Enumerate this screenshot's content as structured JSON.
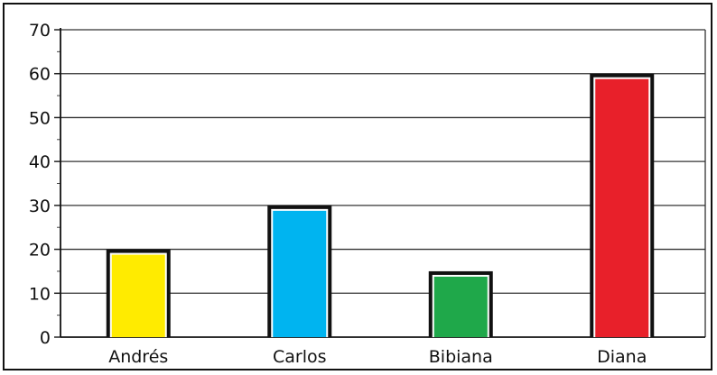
{
  "chart_data": {
    "type": "bar",
    "title": "",
    "xlabel": "",
    "ylabel": "",
    "categories": [
      "Andrés",
      "Carlos",
      "Bibiana",
      "Diana"
    ],
    "values": [
      20,
      30,
      15,
      60
    ],
    "colors": [
      "#ffeb00",
      "#00b4f0",
      "#1fa84a",
      "#e8202a"
    ],
    "ylim": [
      0,
      70
    ],
    "yticks": [
      0,
      10,
      20,
      30,
      40,
      50,
      60,
      70
    ],
    "grid": true,
    "legend": "none"
  }
}
